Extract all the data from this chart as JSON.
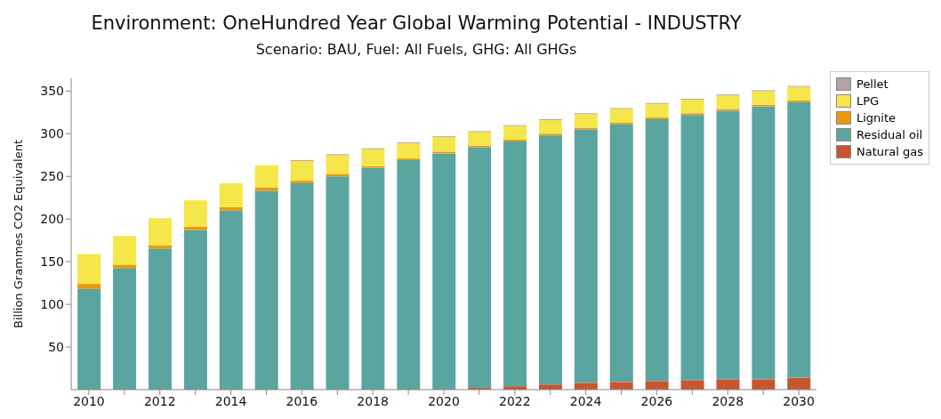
{
  "chart_data": {
    "type": "bar",
    "title": "Environment: OneHundred Year Global Warming Potential - INDUSTRY",
    "subtitle": "Scenario: BAU, Fuel: All Fuels, GHG: All GHGs",
    "ylabel": "Billion Grammes CO2 Equivalent",
    "stacked": true,
    "legend": "top right",
    "categories": [
      "2010",
      null,
      "2012",
      null,
      "2014",
      null,
      "2016",
      null,
      "2018",
      null,
      "2020",
      null,
      "2022",
      null,
      "2024",
      null,
      "2026",
      null,
      "2028",
      null,
      "2030"
    ],
    "ylim": [
      0,
      365
    ],
    "yticks": [
      50,
      100,
      150,
      200,
      250,
      300,
      350
    ],
    "series": [
      {
        "name": "Natural gas",
        "color": "#c8552f",
        "values": [
          0,
          0,
          0,
          0,
          0,
          0,
          0,
          0,
          0,
          0,
          0,
          2,
          4,
          6,
          8,
          9,
          10,
          11,
          12,
          12,
          14
        ]
      },
      {
        "name": "Residual oil",
        "color": "#5ba5a0",
        "values": [
          118,
          142,
          165,
          187,
          210,
          233,
          242,
          250,
          260,
          269,
          277,
          282,
          287,
          292,
          297,
          302,
          307,
          311,
          315,
          320,
          323
        ]
      },
      {
        "name": "Lignite",
        "color": "#e8990f",
        "values": [
          6,
          4,
          4,
          4,
          4,
          4,
          3,
          3,
          2,
          2,
          2,
          2,
          2,
          2,
          2,
          2,
          2,
          2,
          2,
          2,
          2
        ]
      },
      {
        "name": "LPG",
        "color": "#f5e64a",
        "values": [
          35,
          34,
          32,
          31,
          28,
          26,
          23,
          22,
          20,
          18,
          17,
          16,
          16,
          16,
          16,
          16,
          16,
          16,
          16,
          16,
          16
        ]
      },
      {
        "name": "Pellet",
        "color": "#b3a2a8",
        "values": [
          0,
          0,
          0,
          0,
          0,
          0,
          1,
          1,
          1,
          1,
          1,
          1,
          1,
          1,
          1,
          1,
          1,
          1,
          1,
          1,
          1
        ]
      }
    ]
  }
}
